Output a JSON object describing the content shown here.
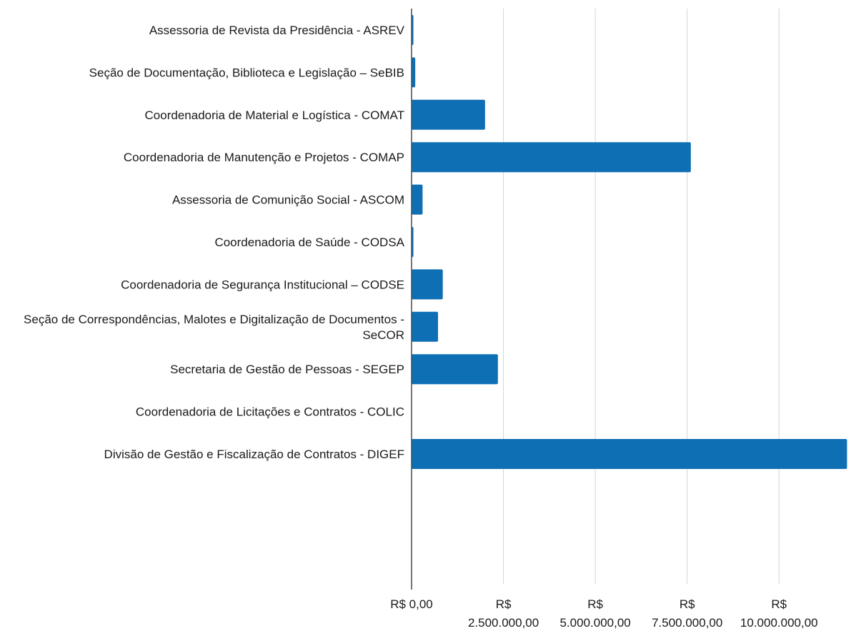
{
  "chart_data": {
    "type": "bar",
    "orientation": "horizontal",
    "title": "",
    "xlabel": "",
    "ylabel": "",
    "categories": [
      [
        "Assessoria de Revista da Presidência - ASREV"
      ],
      [
        "Seção de Documentação, Biblioteca e Legislação – SeBIB"
      ],
      [
        "Coordenadoria de Material e Logística - COMAT"
      ],
      [
        "Coordenadoria de Manutenção e Projetos - COMAP"
      ],
      [
        "Assessoria de Comunição Social - ASCOM"
      ],
      [
        "Coordenadoria de Saúde - CODSA"
      ],
      [
        "Coordenadoria de Segurança Institucional – CODSE"
      ],
      [
        "Seção de Correspondências, Malotes e Digitalização de Documentos -",
        "SeCOR"
      ],
      [
        "Secretaria de Gestão de Pessoas - SEGEP"
      ],
      [
        "Coordenadoria de Licitações e Contratos - COLIC"
      ],
      [
        "Divisão de Gestão e Fiscalização de Contratos - DIGEF"
      ]
    ],
    "values": [
      50000,
      100000,
      2000000,
      7600000,
      300000,
      50000,
      850000,
      720000,
      2350000,
      0,
      11850000
    ],
    "xlim": [
      0,
      11900000
    ],
    "xticks": [
      {
        "value": 0,
        "lines": [
          "R$ 0,00"
        ]
      },
      {
        "value": 2500000,
        "lines": [
          "R$",
          "2.500.000,00"
        ]
      },
      {
        "value": 5000000,
        "lines": [
          "R$",
          "5.000.000,00"
        ]
      },
      {
        "value": 7500000,
        "lines": [
          "R$",
          "7.500.000,00"
        ]
      },
      {
        "value": 10000000,
        "lines": [
          "R$",
          "10.000.000,00"
        ]
      }
    ],
    "grid": true,
    "bar_color": "#0f6fb5"
  }
}
